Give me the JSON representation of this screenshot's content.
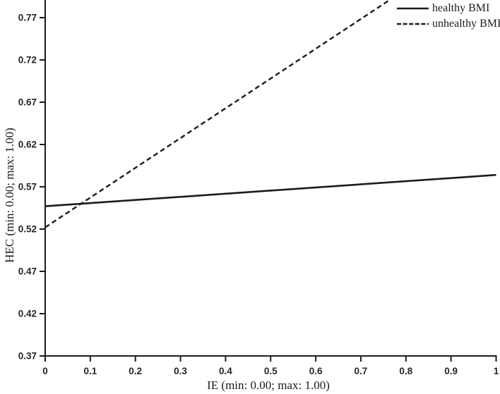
{
  "figure": {
    "background_color": "#ffffff",
    "line_color": "#1c1c1c"
  },
  "legend": {
    "position": "top-right",
    "items": [
      {
        "label": "healthy BMI",
        "line_style": "solid"
      },
      {
        "label": "unhealthy BMI",
        "line_style": "dashed"
      }
    ]
  },
  "chart_data": {
    "type": "line",
    "title": "",
    "xlabel": "IE (min: 0.00; max: 1.00)",
    "ylabel": "HEC (min: 0.00; max: 1.00)",
    "xlim": [
      0,
      1
    ],
    "ylim_visible": [
      0.37,
      0.79
    ],
    "x_tick_values": [
      0,
      0.1,
      0.2,
      0.3,
      0.4,
      0.5,
      0.6,
      0.7,
      0.8,
      0.9,
      1
    ],
    "x_tick_labels": [
      "0",
      "0.1",
      "0.2",
      "0.3",
      "0.4",
      "0.5",
      "0.6",
      "0.7",
      "0.8",
      "0.9",
      "1"
    ],
    "y_tick_values": [
      0.37,
      0.42,
      0.47,
      0.52,
      0.57,
      0.62,
      0.67,
      0.72,
      0.77
    ],
    "y_tick_labels": [
      "0.37",
      "0.42",
      "0.47",
      "0.52",
      "0.57",
      "0.62",
      "0.67",
      "0.72",
      "0.77"
    ],
    "grid": false,
    "legend_position": "top-right",
    "series": [
      {
        "name": "healthy BMI",
        "line_style": "solid",
        "points": [
          [
            0,
            0.547
          ],
          [
            1,
            0.584
          ]
        ]
      },
      {
        "name": "unhealthy BMI",
        "line_style": "dashed",
        "points": [
          [
            0,
            0.522
          ],
          [
            1,
            0.874
          ]
        ]
      }
    ]
  }
}
